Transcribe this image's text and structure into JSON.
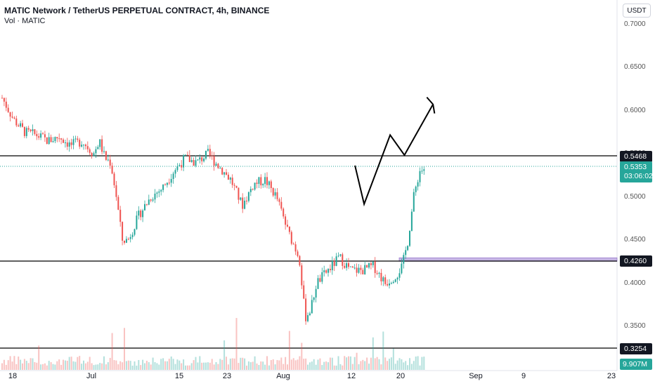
{
  "header": {
    "title": "MATIC Network / TetherUS PERPETUAL CONTRACT, 4h, BINANCE",
    "subtitle": "Vol · MATIC",
    "currency": "USDT"
  },
  "colors": {
    "up": "#26a69a",
    "down": "#ef5350",
    "line": "#000000",
    "zone": "#b39ddb"
  },
  "chart_data": {
    "type": "candlestick",
    "symbol": "MATICUSDT.P",
    "interval": "4h",
    "exchange": "BINANCE",
    "y_axis": {
      "ticks": [
        "0.7000",
        "0.6500",
        "0.6000",
        "0.5500",
        "0.5000",
        "0.4500",
        "0.4000",
        "0.3500"
      ],
      "range": [
        0.323,
        0.71
      ]
    },
    "x_axis": {
      "ticks": [
        "18",
        "Jul",
        "15",
        "23",
        "Aug",
        "12",
        "20",
        "Sep",
        "9",
        "23"
      ]
    },
    "horizontal_lines": [
      {
        "price": 0.5468,
        "label": "0.5468"
      },
      {
        "price": 0.426,
        "label": "0.4260"
      },
      {
        "price": 0.3254,
        "label": "0.3254"
      }
    ],
    "zone": {
      "price_low": 0.4255,
      "price_high": 0.4295
    },
    "current_price": {
      "price": 0.5353,
      "label": "0.5353",
      "countdown": "03:06:02"
    },
    "volume_label": "9.907M",
    "price_path": [
      [
        0,
        0.615
      ],
      [
        0.02,
        0.59
      ],
      [
        0.04,
        0.575
      ],
      [
        0.06,
        0.572
      ],
      [
        0.08,
        0.565
      ],
      [
        0.1,
        0.57
      ],
      [
        0.12,
        0.56
      ],
      [
        0.14,
        0.565
      ],
      [
        0.16,
        0.55
      ],
      [
        0.17,
        0.565
      ],
      [
        0.18,
        0.545
      ],
      [
        0.19,
        0.54
      ],
      [
        0.2,
        0.5
      ],
      [
        0.21,
        0.45
      ],
      [
        0.22,
        0.45
      ],
      [
        0.24,
        0.48
      ],
      [
        0.26,
        0.5
      ],
      [
        0.28,
        0.51
      ],
      [
        0.3,
        0.53
      ],
      [
        0.32,
        0.545
      ],
      [
        0.34,
        0.54
      ],
      [
        0.36,
        0.55
      ],
      [
        0.38,
        0.535
      ],
      [
        0.4,
        0.52
      ],
      [
        0.42,
        0.49
      ],
      [
        0.44,
        0.515
      ],
      [
        0.46,
        0.52
      ],
      [
        0.48,
        0.5
      ],
      [
        0.5,
        0.46
      ],
      [
        0.52,
        0.43
      ],
      [
        0.53,
        0.36
      ],
      [
        0.54,
        0.37
      ],
      [
        0.55,
        0.4
      ],
      [
        0.57,
        0.415
      ],
      [
        0.59,
        0.43
      ],
      [
        0.61,
        0.415
      ],
      [
        0.63,
        0.415
      ],
      [
        0.65,
        0.42
      ],
      [
        0.67,
        0.4
      ],
      [
        0.69,
        0.41
      ],
      [
        0.7,
        0.42
      ],
      [
        0.71,
        0.45
      ],
      [
        0.72,
        0.5
      ],
      [
        0.73,
        0.53
      ],
      [
        0.745,
        0.535
      ]
    ],
    "projection": [
      [
        0.6185,
        0.5365
      ],
      [
        0.6345,
        0.4918
      ],
      [
        0.68,
        0.5719
      ],
      [
        0.705,
        0.5486
      ],
      [
        0.755,
        0.6075
      ]
    ]
  }
}
